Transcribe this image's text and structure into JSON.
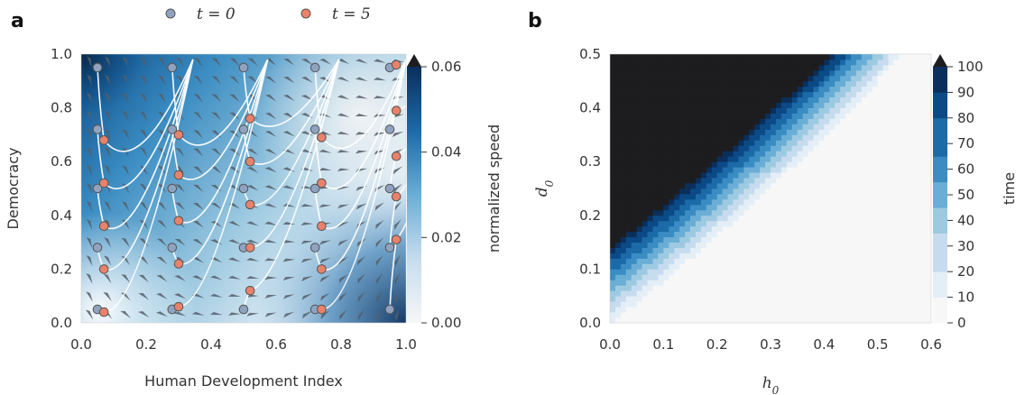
{
  "colors": {
    "start": "#8fa3c1",
    "end": "#e9826a",
    "line": "#ffffff",
    "arrow": "#555e69",
    "black_region": "#1d1d1f",
    "cmap": [
      "#f7f7f7",
      "#e4eef7",
      "#c6dcee",
      "#9ecae1",
      "#6aaed6",
      "#3a8cc2",
      "#1c6aa8",
      "#0b4a86",
      "#0a2f5c"
    ]
  },
  "legend": {
    "t0_label": "t = 0",
    "t5_label": "t = 5"
  },
  "chart_data": [
    {
      "panel": "a",
      "type": "scatter",
      "xlabel": "Human Development Index",
      "ylabel": "Democracy",
      "xlim": [
        0,
        1
      ],
      "ylim": [
        0,
        1
      ],
      "xticks": [
        "0.0",
        "0.2",
        "0.4",
        "0.6",
        "0.8",
        "1.0"
      ],
      "yticks": [
        "0.0",
        "0.2",
        "0.4",
        "0.6",
        "0.8",
        "1.0"
      ],
      "colorbar": {
        "label": "normalized speed",
        "range": [
          0,
          0.06
        ],
        "ticks": [
          "0.00",
          "0.02",
          "0.04",
          "0.06"
        ]
      },
      "series": [
        {
          "name": "t = 0",
          "points": [
            [
              0.05,
              0.95
            ],
            [
              0.05,
              0.72
            ],
            [
              0.05,
              0.5
            ],
            [
              0.05,
              0.28
            ],
            [
              0.05,
              0.05
            ],
            [
              0.28,
              0.95
            ],
            [
              0.28,
              0.72
            ],
            [
              0.28,
              0.5
            ],
            [
              0.28,
              0.28
            ],
            [
              0.28,
              0.05
            ],
            [
              0.5,
              0.95
            ],
            [
              0.5,
              0.72
            ],
            [
              0.5,
              0.5
            ],
            [
              0.5,
              0.28
            ],
            [
              0.5,
              0.05
            ],
            [
              0.72,
              0.95
            ],
            [
              0.72,
              0.72
            ],
            [
              0.72,
              0.5
            ],
            [
              0.72,
              0.28
            ],
            [
              0.72,
              0.05
            ],
            [
              0.95,
              0.95
            ],
            [
              0.95,
              0.72
            ],
            [
              0.95,
              0.5
            ],
            [
              0.95,
              0.28
            ],
            [
              0.95,
              0.05
            ]
          ]
        },
        {
          "name": "t = 5",
          "points": [
            [
              0.07,
              0.68
            ],
            [
              0.07,
              0.52
            ],
            [
              0.07,
              0.36
            ],
            [
              0.07,
              0.2
            ],
            [
              0.07,
              0.04
            ],
            [
              0.3,
              0.7
            ],
            [
              0.3,
              0.55
            ],
            [
              0.3,
              0.38
            ],
            [
              0.3,
              0.22
            ],
            [
              0.3,
              0.06
            ],
            [
              0.52,
              0.76
            ],
            [
              0.52,
              0.6
            ],
            [
              0.52,
              0.44
            ],
            [
              0.52,
              0.28
            ],
            [
              0.52,
              0.12
            ],
            [
              0.74,
              0.69
            ],
            [
              0.74,
              0.52
            ],
            [
              0.74,
              0.36
            ],
            [
              0.74,
              0.2
            ],
            [
              0.74,
              0.05
            ],
            [
              0.97,
              0.96
            ],
            [
              0.97,
              0.79
            ],
            [
              0.97,
              0.62
            ],
            [
              0.97,
              0.47
            ],
            [
              0.97,
              0.31
            ]
          ]
        }
      ]
    },
    {
      "panel": "b",
      "type": "heatmap",
      "xlabel": "h0",
      "ylabel": "d0",
      "xlim": [
        0,
        0.6
      ],
      "ylim": [
        0,
        0.5
      ],
      "xticks": [
        "0.0",
        "0.1",
        "0.2",
        "0.3",
        "0.4",
        "0.5",
        "0.6"
      ],
      "yticks": [
        "0.0",
        "0.1",
        "0.2",
        "0.3",
        "0.4",
        "0.5"
      ],
      "colorbar": {
        "label": "time",
        "range": [
          0,
          100
        ],
        "ticks": [
          "0",
          "10",
          "20",
          "30",
          "40",
          "50",
          "60",
          "70",
          "80",
          "90",
          "100"
        ]
      }
    }
  ]
}
